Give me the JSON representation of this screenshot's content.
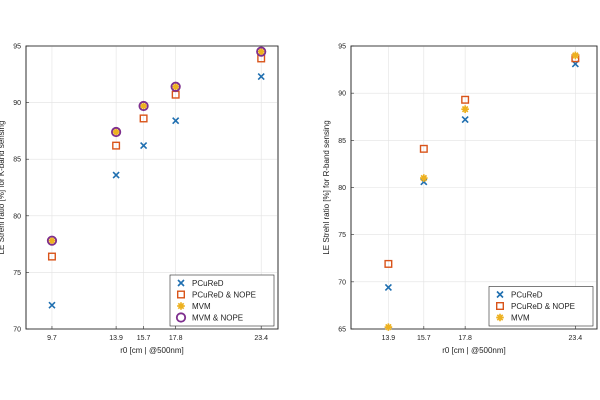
{
  "chart_data": [
    {
      "type": "scatter",
      "title": "",
      "xlabel": "r0 [cm | @500nm]",
      "ylabel": "LE Strehl ratio [%] for K-band sensing",
      "xlim": [
        8.0,
        24.5
      ],
      "ylim": [
        70,
        95
      ],
      "xticks": [
        9.7,
        13.9,
        15.7,
        17.8,
        23.4
      ],
      "xtick_labels": [
        "9.7",
        "13.9",
        "15.7",
        "17.8",
        "23.4"
      ],
      "yticks": [
        70,
        75,
        80,
        85,
        90,
        95
      ],
      "ytick_labels": [
        "70",
        "75",
        "80",
        "85",
        "90",
        "95"
      ],
      "grid": true,
      "legend_position": "bottom-right",
      "series": [
        {
          "name": "PCuReD",
          "marker": "x",
          "color": "#1f6fb0",
          "x": [
            9.7,
            13.9,
            15.7,
            17.8,
            23.4
          ],
          "y": [
            72.1,
            83.6,
            86.2,
            88.4,
            92.3
          ]
        },
        {
          "name": "PCuReD & NOPE",
          "marker": "square",
          "color": "#d9541a",
          "x": [
            9.7,
            13.9,
            15.7,
            17.8,
            23.4
          ],
          "y": [
            76.4,
            86.2,
            88.6,
            90.7,
            93.9
          ]
        },
        {
          "name": "MVM",
          "marker": "star",
          "color": "#edb120",
          "x": [
            9.7,
            13.9,
            15.7,
            17.8,
            23.4
          ],
          "y": [
            77.8,
            87.4,
            89.7,
            91.4,
            94.5
          ]
        },
        {
          "name": "MVM & NOPE",
          "marker": "circle",
          "color": "#7e2f8e",
          "x": [
            9.7,
            13.9,
            15.7,
            17.8,
            23.4
          ],
          "y": [
            77.8,
            87.4,
            89.7,
            91.4,
            94.5
          ]
        }
      ]
    },
    {
      "type": "scatter",
      "title": "",
      "xlabel": "r0 [cm | @500nm]",
      "ylabel": "LE Strehl ratio [%] for R-band sensing",
      "xlim": [
        12.0,
        24.5
      ],
      "ylim": [
        65,
        95
      ],
      "xticks": [
        13.9,
        15.7,
        17.8,
        23.4
      ],
      "xtick_labels": [
        "13.9",
        "15.7",
        "17.8",
        "23.4"
      ],
      "yticks": [
        65,
        70,
        75,
        80,
        85,
        90,
        95
      ],
      "ytick_labels": [
        "65",
        "70",
        "75",
        "80",
        "85",
        "90",
        "95"
      ],
      "grid": true,
      "legend_position": "bottom-right",
      "series": [
        {
          "name": "PCuReD",
          "marker": "x",
          "color": "#1f6fb0",
          "x": [
            13.9,
            15.7,
            17.8,
            23.4
          ],
          "y": [
            69.4,
            80.6,
            87.2,
            93.1
          ]
        },
        {
          "name": "PCuReD & NOPE",
          "marker": "square",
          "color": "#d9541a",
          "x": [
            13.9,
            15.7,
            17.8,
            23.4
          ],
          "y": [
            71.9,
            84.1,
            89.3,
            93.7
          ]
        },
        {
          "name": "MVM",
          "marker": "star",
          "color": "#edb120",
          "x": [
            13.9,
            15.7,
            17.8,
            23.4
          ],
          "y": [
            65.2,
            81.0,
            88.3,
            94.0
          ]
        }
      ]
    }
  ]
}
